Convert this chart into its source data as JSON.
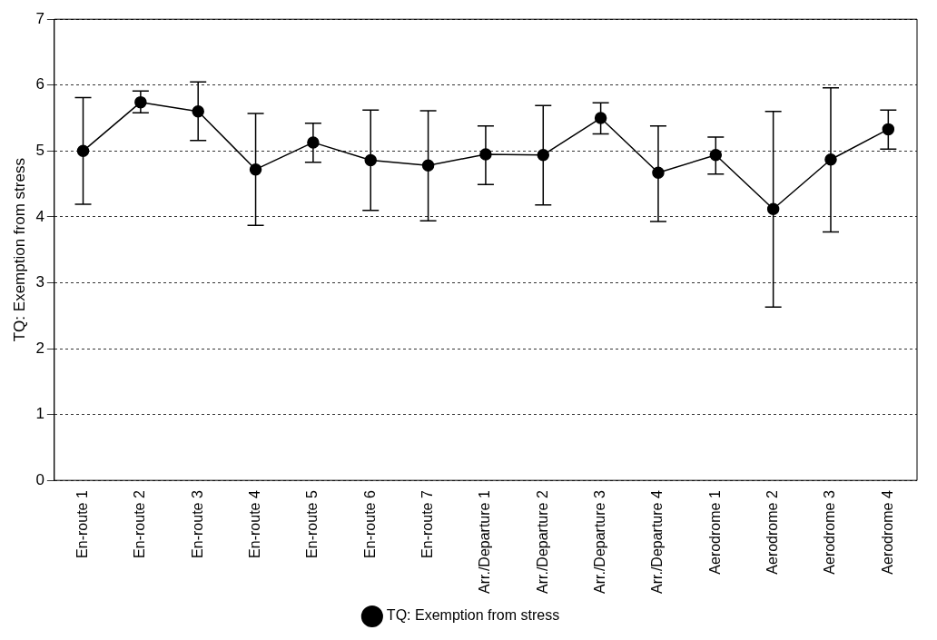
{
  "chart_data": {
    "type": "line",
    "ylabel": "TQ: Exemption from stress",
    "categories": [
      "En-route 1",
      "En-route 2",
      "En-route 3",
      "En-route 4",
      "En-route 5",
      "En-route 6",
      "En-route 7",
      "Arr./Departure 1",
      "Arr./Departure 2",
      "Arr./Departure 3",
      "Arr./Departure 4",
      "Aerodrome 1",
      "Aerodrome 2",
      "Aerodrome 3",
      "Aerodrome 4"
    ],
    "series": [
      {
        "name": "TQ: Exemption from stress",
        "color": "#000000",
        "values": [
          5.0,
          5.74,
          5.6,
          4.72,
          5.13,
          4.86,
          4.78,
          4.95,
          4.94,
          5.5,
          4.67,
          4.94,
          4.12,
          4.87,
          5.33
        ],
        "errors": [
          [
            4.19,
            5.81
          ],
          [
            5.58,
            5.91
          ],
          [
            5.16,
            6.05
          ],
          [
            3.87,
            5.57
          ],
          [
            4.83,
            5.42
          ],
          [
            4.1,
            5.62
          ],
          [
            3.94,
            5.61
          ],
          [
            4.49,
            5.38
          ],
          [
            4.18,
            5.69
          ],
          [
            5.26,
            5.73
          ],
          [
            3.93,
            5.38
          ],
          [
            4.65,
            5.21
          ],
          [
            2.63,
            5.6
          ],
          [
            3.77,
            5.96
          ],
          [
            5.03,
            5.62
          ]
        ]
      }
    ],
    "ylim": [
      0,
      7
    ],
    "yticks": [
      0,
      1,
      2,
      3,
      4,
      5,
      6,
      7
    ],
    "grid": "y",
    "legend": "bottom",
    "marker": "circle",
    "line_style": "solid"
  }
}
